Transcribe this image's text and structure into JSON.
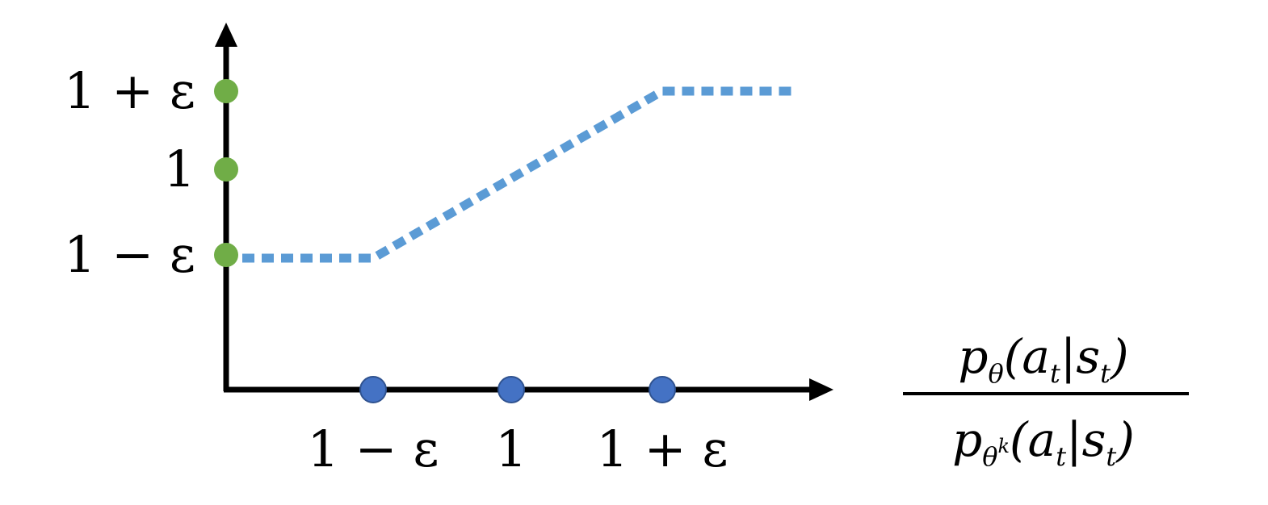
{
  "chart_data": {
    "type": "line",
    "title": "",
    "xlabel": {
      "numerator": {
        "p": "p",
        "sub": "θ",
        "args": "(a",
        "t1": "t",
        "bar": "|s",
        "t2": "t",
        "close": ")"
      },
      "denominator": {
        "p": "p",
        "sub": "θ",
        "sup": "k",
        "args": "(a",
        "t1": "t",
        "bar": "|s",
        "t2": "t",
        "close": ")"
      }
    },
    "ylabel": "",
    "x_ticks": [
      "1 − ε",
      "1",
      "1 + ε"
    ],
    "y_ticks": [
      "1 + ε",
      "1",
      "1 − ε"
    ],
    "series": [
      {
        "style": "dotted",
        "points": [
          {
            "x": "origin",
            "y": "1 − ε"
          },
          {
            "x": "1 − ε",
            "y": "1 − ε"
          },
          {
            "x": "1 + ε",
            "y": "1 + ε"
          },
          {
            "x": "beyond",
            "y": "1 + ε"
          }
        ]
      }
    ],
    "grid": false,
    "colors": {
      "line": "#5B9BD5",
      "x_tick_marker": "#4472C4",
      "y_tick_marker": "#70AD47",
      "axis": "#000000"
    }
  }
}
